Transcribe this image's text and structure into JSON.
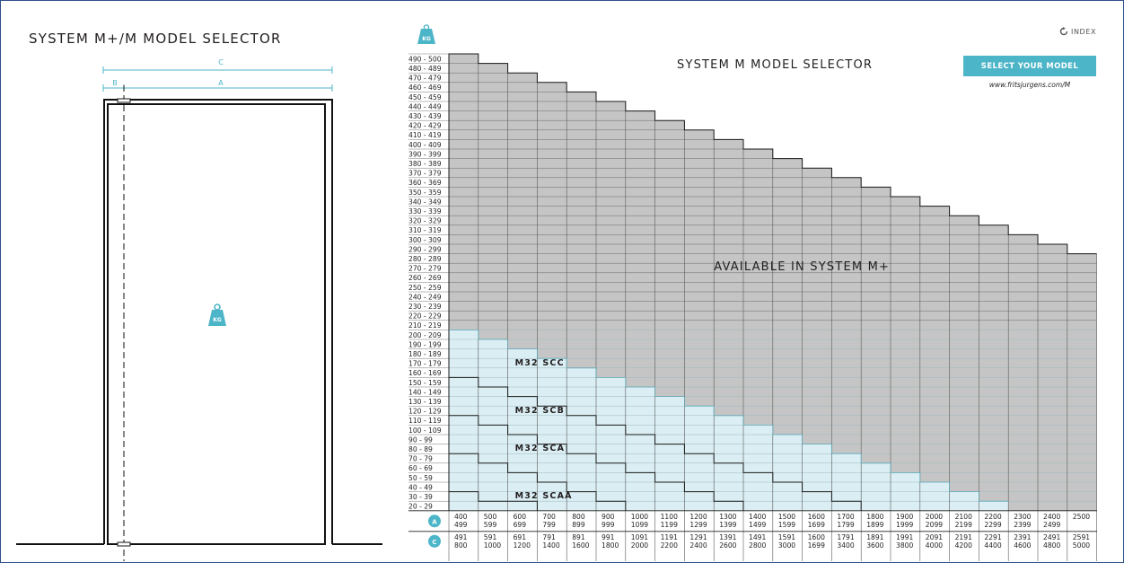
{
  "left_panel": {
    "title": "SYSTEM M+/M  MODEL SELECTOR",
    "dim_c": "C",
    "dim_b": "B",
    "dim_a": "A",
    "kg_icon": "weight-kg-icon",
    "kg_text": "KG"
  },
  "header": {
    "kg_icon": "weight-kg-icon",
    "kg_text": "KG",
    "index_label": "INDEX",
    "index_icon": "refresh-icon",
    "select_button": "SELECT YOUR MODEL",
    "url": "www.fritsjurgens.com/M"
  },
  "colors": {
    "gray": "#c5c5c5",
    "blue": "#dbeef3",
    "accent": "#4cb5c8",
    "line": "#1a1a1a"
  },
  "chart_data": {
    "type": "heatmap",
    "title": "SYSTEM M  MODEL SELECTOR",
    "y_labels": [
      "490 - 500",
      "480 - 489",
      "470 - 479",
      "460 - 469",
      "450 - 459",
      "440 - 449",
      "430 - 439",
      "420 - 429",
      "410 - 419",
      "400 - 409",
      "390 - 399",
      "380 - 389",
      "370 - 379",
      "360 - 369",
      "350 - 359",
      "340 - 349",
      "330 - 339",
      "320 - 329",
      "310 - 319",
      "300 - 309",
      "290 - 299",
      "280 - 289",
      "270 - 279",
      "260 - 269",
      "250 - 259",
      "240 - 249",
      "230 - 239",
      "220 - 229",
      "210 - 219",
      "200 - 209",
      "190 - 199",
      "180 - 189",
      "170 - 179",
      "160 - 169",
      "150 - 159",
      "140 - 149",
      "130 - 139",
      "120 - 129",
      "110 - 119",
      "100 - 109",
      "90 - 99",
      "80 - 89",
      "70 - 79",
      "60 - 69",
      "50 - 59",
      "40 - 49",
      "30 - 39",
      "20 - 29"
    ],
    "row_a_label": "A",
    "row_c_label": "C",
    "columns": [
      {
        "a": [
          "400",
          "499"
        ],
        "c": [
          "491",
          "800"
        ]
      },
      {
        "a": [
          "500",
          "599"
        ],
        "c": [
          "591",
          "1000"
        ]
      },
      {
        "a": [
          "600",
          "699"
        ],
        "c": [
          "691",
          "1200"
        ]
      },
      {
        "a": [
          "700",
          "799"
        ],
        "c": [
          "791",
          "1400"
        ]
      },
      {
        "a": [
          "800",
          "899"
        ],
        "c": [
          "891",
          "1600"
        ]
      },
      {
        "a": [
          "900",
          "999"
        ],
        "c": [
          "991",
          "1800"
        ]
      },
      {
        "a": [
          "1000",
          "1099"
        ],
        "c": [
          "1091",
          "2000"
        ]
      },
      {
        "a": [
          "1100",
          "1199"
        ],
        "c": [
          "1191",
          "2200"
        ]
      },
      {
        "a": [
          "1200",
          "1299"
        ],
        "c": [
          "1291",
          "2400"
        ]
      },
      {
        "a": [
          "1300",
          "1399"
        ],
        "c": [
          "1391",
          "2600"
        ]
      },
      {
        "a": [
          "1400",
          "1499"
        ],
        "c": [
          "1491",
          "2800"
        ]
      },
      {
        "a": [
          "1500",
          "1599"
        ],
        "c": [
          "1591",
          "3000"
        ]
      },
      {
        "a": [
          "1600",
          "1699"
        ],
        "c": [
          "1600",
          "1699"
        ]
      },
      {
        "a": [
          "1700",
          "1799"
        ],
        "c": [
          "1791",
          "3400"
        ]
      },
      {
        "a": [
          "1800",
          "1899"
        ],
        "c": [
          "1891",
          "3600"
        ]
      },
      {
        "a": [
          "1900",
          "1999"
        ],
        "c": [
          "1991",
          "3800"
        ]
      },
      {
        "a": [
          "2000",
          "2099"
        ],
        "c": [
          "2091",
          "4000"
        ]
      },
      {
        "a": [
          "2100",
          "2199"
        ],
        "c": [
          "2191",
          "4200"
        ]
      },
      {
        "a": [
          "2200",
          "2299"
        ],
        "c": [
          "2291",
          "4400"
        ]
      },
      {
        "a": [
          "2300",
          "2399"
        ],
        "c": [
          "2391",
          "4600"
        ]
      },
      {
        "a": [
          "2400",
          "2499"
        ],
        "c": [
          "2491",
          "4800"
        ]
      },
      {
        "a": [
          "2500"
        ],
        "c": [
          "2591",
          "5000"
        ]
      }
    ],
    "gray_max_row": [
      0,
      1,
      2,
      3,
      4,
      5,
      6,
      7,
      8,
      9,
      10,
      11,
      12,
      13,
      14,
      15,
      16,
      17,
      18,
      19,
      20,
      21
    ],
    "blue_max_row": [
      29,
      30,
      31,
      32,
      33,
      34,
      35,
      36,
      37,
      38,
      39,
      40,
      41,
      42,
      43,
      44,
      45,
      46,
      47,
      48,
      48,
      48
    ],
    "zones": [
      {
        "label": "AVAILABLE IN SYSTEM M+",
        "steps": [
          0,
          1,
          2,
          3,
          4,
          5,
          6,
          7,
          8,
          9,
          10,
          11,
          12,
          13,
          14,
          15,
          16,
          17,
          18,
          19,
          20,
          21
        ],
        "label_col": 9,
        "label_row": 23
      },
      {
        "label": "M32 SCC",
        "steps": [
          34,
          35,
          36,
          37,
          38,
          39,
          40,
          41,
          42,
          43,
          44,
          45,
          46,
          47,
          48,
          48,
          48,
          48,
          48,
          48,
          48,
          48
        ],
        "label_col": 2,
        "label_row": 33
      },
      {
        "label": "M32 SCB",
        "steps": [
          38,
          39,
          40,
          41,
          42,
          43,
          44,
          45,
          46,
          47,
          48,
          48,
          48,
          48,
          48,
          48,
          48,
          48,
          48,
          48,
          48,
          48
        ],
        "label_col": 2,
        "label_row": 38
      },
      {
        "label": "M32 SCA",
        "steps": [
          42,
          43,
          44,
          45,
          46,
          47,
          48,
          48,
          48,
          48,
          48,
          48,
          48,
          48,
          48,
          48,
          48,
          48,
          48,
          48,
          48,
          48
        ],
        "label_col": 2,
        "label_row": 42
      },
      {
        "label": "M32 SCAA",
        "steps": [
          46,
          47,
          47,
          48,
          48,
          48,
          48,
          48,
          48,
          48,
          48,
          48,
          48,
          48,
          48,
          48,
          48,
          48,
          48,
          48,
          48,
          48
        ],
        "label_col": 2,
        "label_row": 47
      }
    ]
  }
}
